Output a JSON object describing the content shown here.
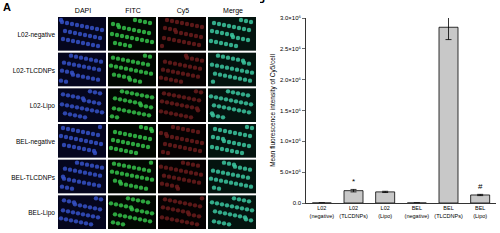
{
  "panel_a": {
    "label": "A",
    "columns": [
      "DAPI",
      "FITC",
      "Cy5",
      "Merge"
    ],
    "rows": [
      "L02-negative",
      "L02-TLCDNPs",
      "L02-Lipo",
      "BEL-negative",
      "BEL-TLCDNPs",
      "BEL-Lipo"
    ]
  },
  "chart_data": {
    "type": "bar",
    "y_label": "Mean fluorescence intensity of Cy5/cell",
    "categories": [
      "L02\n(negative)",
      "L02\n(TLCDNPs)",
      "L02\n(Lipo)",
      "BEL\n(negative)",
      "BEL\n(TLCDNPs)",
      "BEL\n(Lipo)"
    ],
    "values": [
      0,
      200000,
      180000,
      0,
      2850000,
      130000
    ],
    "errors": [
      0,
      20000,
      10000,
      0,
      200000,
      10000
    ],
    "color": "#c8c8c8",
    "ylim": [
      0,
      3000000
    ],
    "yticks": [
      {
        "value": 0,
        "label": "0.0"
      },
      {
        "value": 500000,
        "label": "5.0×10⁵"
      },
      {
        "value": 1000000,
        "label": "1.0×10⁶"
      },
      {
        "value": 1500000,
        "label": "1.5×10⁶"
      },
      {
        "value": 2000000,
        "label": "2.0×10⁶"
      },
      {
        "value": 2500000,
        "label": "2.5×10⁶"
      },
      {
        "value": 3000000,
        "label": "3.0×10⁶"
      }
    ],
    "grid": false,
    "annotations": [
      {
        "text": "B"
      },
      {
        "text": "*",
        "category": "L02\n(TLCDNPs)"
      },
      {
        "text": "#",
        "category": "BEL\n(Lipo)"
      }
    ]
  }
}
